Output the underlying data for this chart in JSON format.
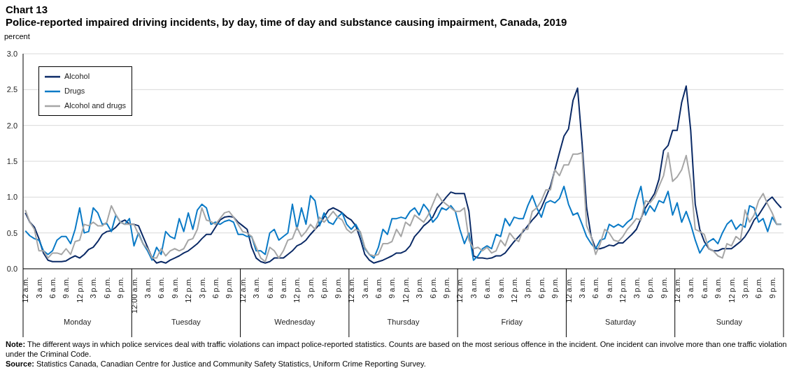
{
  "chart_data": {
    "type": "line",
    "title": "Chart 13",
    "subtitle": "Police-reported impaired driving incidents, by day, time of day and substance causing impairment, Canada, 2019",
    "ylabel": "percent",
    "categories": [
      "12 a.m.",
      null,
      null,
      "3 a.m.",
      null,
      null,
      "6 a.m.",
      null,
      null,
      "9 a.m.",
      null,
      null,
      "12 p.m.",
      null,
      null,
      "3 p.m.",
      null,
      null,
      "6 p.m.",
      null,
      null,
      "9 p.m.",
      null,
      null,
      "12:00 a.m.",
      null,
      null,
      "3 a.m.",
      null,
      null,
      "6 a.m.",
      null,
      null,
      "9 a.m.",
      null,
      null,
      "12 p.m.",
      null,
      null,
      "3 p.m.",
      null,
      null,
      "6 p.m.",
      null,
      null,
      "9 p.m.",
      null,
      null,
      "12 a.m.",
      null,
      null,
      "3 a.m.",
      null,
      null,
      "6 a.m.",
      null,
      null,
      "9 a.m.",
      null,
      null,
      "12 p.m.",
      null,
      null,
      "3 p.m.",
      null,
      null,
      "6 p.m.",
      null,
      null,
      "9 p.m.",
      null,
      null,
      "12 a.m.",
      null,
      null,
      "3 a.m.",
      null,
      null,
      "6 a.m.",
      null,
      null,
      "9 a.m.",
      null,
      null,
      "12 p.m.",
      null,
      null,
      "3 p.m.",
      null,
      null,
      "6 p.m.",
      null,
      null,
      "9 p.m.",
      null,
      null,
      "12 a.m.",
      null,
      null,
      "3 a.m.",
      null,
      null,
      "6 a.m.",
      null,
      null,
      "9 a.m.",
      null,
      null,
      "12 p.m.",
      null,
      null,
      "3 p.m.",
      null,
      null,
      "6 p.m.",
      null,
      null,
      "9 p.m.",
      null,
      null,
      "12 a.m.",
      null,
      null,
      "3 a.m.",
      null,
      null,
      "6 a.m.",
      null,
      null,
      "9 a.m.",
      null,
      null,
      "12 p.m.",
      null,
      null,
      "3 p.m.",
      null,
      null,
      "6 p.m.",
      null,
      null,
      "9 p.m.",
      null,
      null,
      "12 a.m.",
      null,
      null,
      "3 a.m.",
      null,
      null,
      "6 a.m.",
      null,
      null,
      "9 a.m.",
      null,
      null,
      "12 p.m.",
      null,
      null,
      "3 p.m.",
      null,
      null,
      "6 p.m.",
      null,
      null,
      "9 p.m.",
      null,
      null
    ],
    "series": [
      {
        "name": "Alcohol",
        "color": "#0b2a66",
        "values": [
          0.78,
          0.65,
          0.58,
          0.42,
          0.22,
          0.12,
          0.1,
          0.1,
          0.1,
          0.11,
          0.15,
          0.18,
          0.15,
          0.2,
          0.27,
          0.3,
          0.38,
          0.48,
          0.52,
          0.53,
          0.58,
          0.65,
          0.68,
          0.62,
          0.62,
          0.6,
          0.45,
          0.3,
          0.15,
          0.08,
          0.1,
          0.08,
          0.12,
          0.15,
          0.18,
          0.22,
          0.25,
          0.3,
          0.35,
          0.42,
          0.48,
          0.48,
          0.58,
          0.68,
          0.72,
          0.73,
          0.72,
          0.65,
          0.6,
          0.55,
          0.3,
          0.15,
          0.1,
          0.08,
          0.1,
          0.15,
          0.15,
          0.15,
          0.2,
          0.25,
          0.32,
          0.35,
          0.4,
          0.48,
          0.55,
          0.62,
          0.72,
          0.82,
          0.85,
          0.82,
          0.78,
          0.72,
          0.68,
          0.6,
          0.42,
          0.2,
          0.12,
          0.08,
          0.1,
          0.12,
          0.15,
          0.18,
          0.22,
          0.22,
          0.25,
          0.32,
          0.45,
          0.52,
          0.6,
          0.65,
          0.72,
          0.85,
          0.92,
          1.0,
          1.07,
          1.05,
          1.05,
          1.05,
          0.8,
          0.18,
          0.15,
          0.15,
          0.14,
          0.15,
          0.18,
          0.18,
          0.22,
          0.3,
          0.38,
          0.45,
          0.52,
          0.6,
          0.68,
          0.75,
          0.85,
          1.0,
          1.15,
          1.38,
          1.62,
          1.85,
          1.95,
          2.35,
          2.52,
          1.75,
          0.85,
          0.45,
          0.28,
          0.28,
          0.3,
          0.33,
          0.32,
          0.36,
          0.36,
          0.42,
          0.48,
          0.55,
          0.7,
          0.85,
          0.95,
          1.05,
          1.25,
          1.65,
          1.72,
          1.93,
          1.93,
          2.32,
          2.55,
          1.93,
          0.9,
          0.55,
          0.38,
          0.28,
          0.25,
          0.25,
          0.28,
          0.28,
          0.28,
          0.33,
          0.38,
          0.45,
          0.55,
          0.68,
          0.75,
          0.85,
          0.95,
          1.0,
          0.92,
          0.85
        ]
      },
      {
        "name": "Drugs",
        "color": "#0a7ac6",
        "values": [
          0.53,
          0.46,
          0.42,
          0.4,
          0.25,
          0.2,
          0.25,
          0.4,
          0.45,
          0.45,
          0.35,
          0.55,
          0.85,
          0.5,
          0.52,
          0.85,
          0.78,
          0.62,
          0.63,
          0.52,
          0.75,
          0.65,
          0.62,
          0.7,
          0.32,
          0.5,
          0.35,
          0.25,
          0.12,
          0.3,
          0.2,
          0.52,
          0.45,
          0.42,
          0.7,
          0.52,
          0.78,
          0.55,
          0.82,
          0.9,
          0.85,
          0.62,
          0.65,
          0.62,
          0.66,
          0.68,
          0.65,
          0.48,
          0.48,
          0.45,
          0.45,
          0.25,
          0.25,
          0.2,
          0.5,
          0.55,
          0.4,
          0.45,
          0.5,
          0.9,
          0.55,
          0.85,
          0.62,
          1.02,
          0.95,
          0.6,
          0.78,
          0.65,
          0.62,
          0.72,
          0.78,
          0.62,
          0.55,
          0.62,
          0.5,
          0.28,
          0.2,
          0.15,
          0.3,
          0.55,
          0.48,
          0.7,
          0.7,
          0.72,
          0.7,
          0.8,
          0.85,
          0.75,
          0.9,
          0.82,
          0.65,
          0.72,
          0.85,
          0.82,
          0.88,
          0.8,
          0.55,
          0.35,
          0.5,
          0.12,
          0.18,
          0.28,
          0.32,
          0.28,
          0.48,
          0.45,
          0.7,
          0.6,
          0.72,
          0.7,
          0.7,
          0.88,
          1.02,
          0.85,
          0.72,
          0.92,
          0.95,
          0.92,
          0.98,
          1.15,
          0.9,
          0.75,
          0.78,
          0.62,
          0.45,
          0.35,
          0.28,
          0.4,
          0.42,
          0.62,
          0.58,
          0.62,
          0.58,
          0.65,
          0.7,
          0.95,
          1.15,
          0.75,
          0.88,
          0.8,
          0.95,
          0.92,
          1.08,
          0.75,
          0.92,
          0.65,
          0.8,
          0.62,
          0.4,
          0.22,
          0.32,
          0.38,
          0.42,
          0.35,
          0.5,
          0.62,
          0.68,
          0.55,
          0.62,
          0.58,
          0.88,
          0.85,
          0.65,
          0.7,
          0.52,
          0.72,
          0.62,
          0.62
        ]
      },
      {
        "name": "Alcohol and drugs",
        "color": "#a6a6a6",
        "values": [
          0.82,
          0.65,
          0.55,
          0.25,
          0.25,
          0.15,
          0.22,
          0.22,
          0.2,
          0.28,
          0.2,
          0.38,
          0.4,
          0.62,
          0.6,
          0.65,
          0.6,
          0.6,
          0.65,
          0.88,
          0.75,
          0.65,
          0.62,
          0.62,
          0.62,
          0.48,
          0.35,
          0.28,
          0.15,
          0.15,
          0.28,
          0.18,
          0.25,
          0.28,
          0.25,
          0.28,
          0.4,
          0.42,
          0.55,
          0.85,
          0.68,
          0.66,
          0.62,
          0.7,
          0.78,
          0.8,
          0.72,
          0.62,
          0.52,
          0.5,
          0.45,
          0.3,
          0.15,
          0.1,
          0.3,
          0.25,
          0.15,
          0.25,
          0.4,
          0.42,
          0.58,
          0.45,
          0.52,
          0.62,
          0.55,
          0.72,
          0.65,
          0.72,
          0.8,
          0.72,
          0.68,
          0.55,
          0.5,
          0.55,
          0.52,
          0.3,
          0.2,
          0.18,
          0.2,
          0.35,
          0.35,
          0.38,
          0.55,
          0.45,
          0.65,
          0.6,
          0.75,
          0.7,
          0.65,
          0.75,
          0.9,
          1.05,
          0.95,
          0.9,
          0.85,
          0.8,
          0.8,
          0.85,
          0.4,
          0.28,
          0.3,
          0.25,
          0.3,
          0.22,
          0.25,
          0.4,
          0.32,
          0.5,
          0.42,
          0.38,
          0.55,
          0.55,
          0.8,
          0.85,
          0.95,
          1.1,
          1.1,
          1.38,
          1.3,
          1.45,
          1.45,
          1.6,
          1.6,
          1.62,
          0.6,
          0.45,
          0.2,
          0.35,
          0.55,
          0.5,
          0.4,
          0.38,
          0.45,
          0.55,
          0.62,
          0.7,
          0.68,
          0.95,
          0.92,
          1.0,
          1.15,
          1.3,
          1.62,
          1.22,
          1.28,
          1.38,
          1.58,
          1.22,
          0.55,
          0.52,
          0.48,
          0.28,
          0.25,
          0.18,
          0.15,
          0.35,
          0.32,
          0.45,
          0.4,
          0.82,
          0.65,
          0.75,
          0.95,
          1.05,
          0.9,
          0.78,
          0.62,
          0.62
        ]
      }
    ],
    "ylim": [
      0,
      3
    ],
    "yticks": [
      {
        "value": 0,
        "label": "0.0"
      },
      {
        "value": 0.5,
        "label": "0.5"
      },
      {
        "value": 1,
        "label": "1.0"
      },
      {
        "value": 1.5,
        "label": "1.5"
      },
      {
        "value": 2,
        "label": "2.0"
      },
      {
        "value": 2.5,
        "label": "2.5"
      },
      {
        "value": 3,
        "label": "3.0"
      }
    ],
    "grid": "y",
    "legend": "top left",
    "marker": "none",
    "line_style": "solid",
    "annotations": [
      "Monday",
      "Tuesday",
      "Wednesday",
      "Thursday",
      "Friday",
      "Saturday",
      "Sunday",
      "Note: The different ways in which police services deal with traffic violations can impact police-reported statistics. Counts are based on the most serious offence in the incident. One incident can involve more than one traffic violation under the Criminal Code.",
      "Source: Statistics Canada, Canadian Centre for Justice and Community Safety Statistics, Uniform Crime Reporting Survey."
    ]
  }
}
